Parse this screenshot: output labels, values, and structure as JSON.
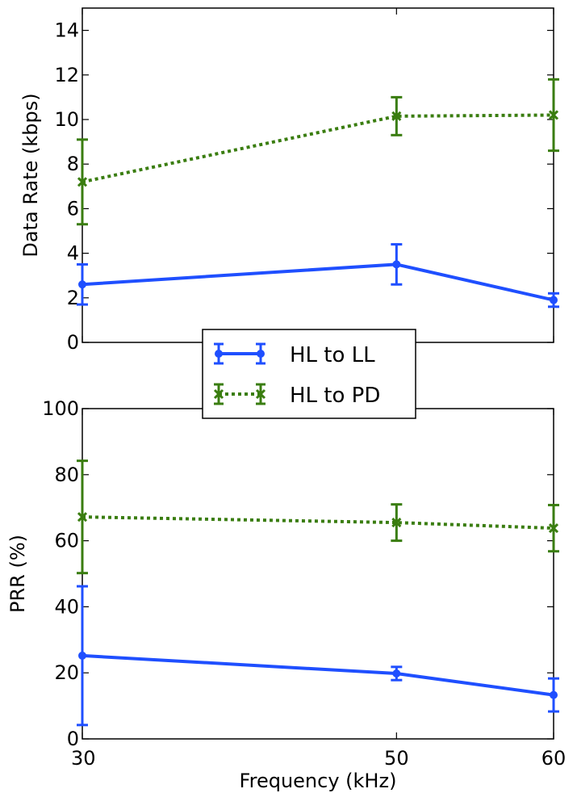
{
  "chart_data": [
    {
      "type": "line",
      "xlabel": "",
      "ylabel": "Data Rate (kbps)",
      "xlim": [
        30,
        60
      ],
      "ylim": [
        0,
        15
      ],
      "yticks": [
        0,
        2,
        4,
        6,
        8,
        10,
        12,
        14
      ],
      "x": [
        30,
        50,
        60
      ],
      "series": [
        {
          "name": "HL to LL",
          "values": [
            2.6,
            3.5,
            1.9
          ],
          "err": [
            0.9,
            0.9,
            0.3
          ],
          "color": "#1f4fff",
          "marker": "circle",
          "linestyle": "solid"
        },
        {
          "name": "HL to PD",
          "values": [
            7.2,
            10.15,
            10.2
          ],
          "err": [
            1.9,
            0.85,
            1.6
          ],
          "color": "#3a7d10",
          "marker": "x",
          "linestyle": "dotted"
        }
      ]
    },
    {
      "type": "line",
      "xlabel": "Frequency (kHz)",
      "ylabel": "PRR (%)",
      "xlim": [
        30,
        60
      ],
      "ylim": [
        0,
        100
      ],
      "yticks": [
        0,
        20,
        40,
        60,
        80,
        100
      ],
      "xticks": [
        30,
        50,
        60
      ],
      "x": [
        30,
        50,
        60
      ],
      "series": [
        {
          "name": "HL to LL",
          "values": [
            25.2,
            19.8,
            13.3
          ],
          "err": [
            21,
            2,
            5
          ],
          "color": "#1f4fff",
          "marker": "circle",
          "linestyle": "solid"
        },
        {
          "name": "HL to PD",
          "values": [
            67.2,
            65.5,
            63.8
          ],
          "err": [
            17,
            5.5,
            7
          ],
          "color": "#3a7d10",
          "marker": "x",
          "linestyle": "dotted"
        }
      ]
    }
  ],
  "legend": {
    "placement": "center",
    "entries": [
      "HL to LL",
      "HL to PD"
    ]
  }
}
